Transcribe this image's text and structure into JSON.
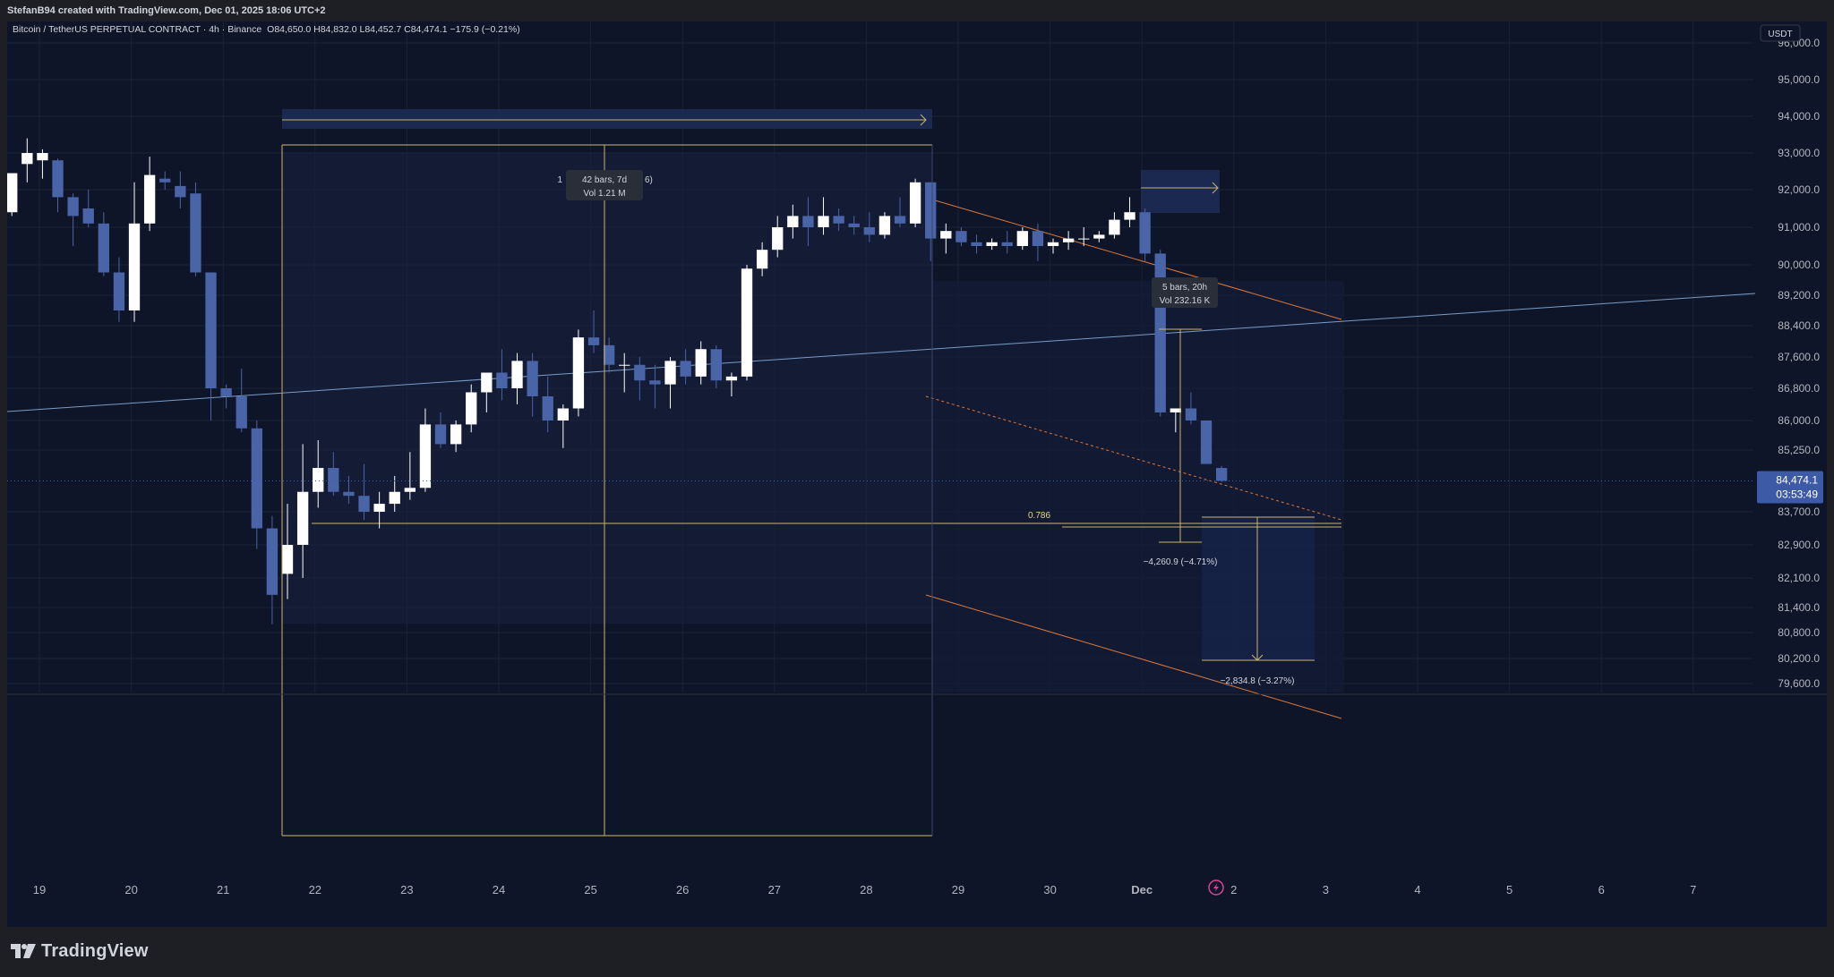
{
  "header": {
    "created_text": "StefanB94 created with TradingView.com, Dec 01, 2025 18:06 UTC+2"
  },
  "legend": {
    "symbol": "Bitcoin / TetherUS PERPETUAL CONTRACT · 4h · Binance",
    "ohlc": "O84,650.0  H84,832.0  L84,452.7  C84,474.1  −175.9 (−0.21%)"
  },
  "price_scale": {
    "currency": "USDT",
    "ticks": [
      "96,000.0",
      "95,000.0",
      "94,000.0",
      "93,000.0",
      "92,000.0",
      "91,000.0",
      "90,000.0",
      "89,200.0",
      "88,400.0",
      "87,600.0",
      "86,800.0",
      "86,000.0",
      "85,250.0",
      "83,700.0",
      "82,900.0",
      "82,100.0",
      "81,400.0",
      "80,800.0",
      "80,200.0",
      "79,600.0"
    ],
    "last_price": "84,474.1",
    "countdown": "03:53:49"
  },
  "time_axis": {
    "labels": [
      "19",
      "20",
      "21",
      "22",
      "23",
      "24",
      "25",
      "26",
      "27",
      "28",
      "29",
      "30",
      "Dec",
      "2",
      "3",
      "4",
      "5",
      "6",
      "7"
    ]
  },
  "annotations": {
    "range1_line1": "42 bars, 7d",
    "range1_line2": "Vol 1.21 M",
    "range1_hidden_prefix": "1",
    "range1_hidden_suffix": "6)",
    "range2_line1": "5 bars, 20h",
    "range2_line2": "Vol 232.16 K",
    "fib_label": "0.786",
    "measure1": "−4,260.9 (−4.71%)",
    "measure2": "−2,834.8 (−3.27%)"
  },
  "branding": {
    "logo_text": "TradingView"
  },
  "colors": {
    "bg": "#0f1528",
    "up": "#ffffff",
    "down": "#4a64a8",
    "axis_text": "#b2b5be",
    "trend_orange": "#d9783a",
    "trend_blue": "#7a9cc6",
    "fib_yellow": "#c9b56a",
    "last_price_bg": "#3d5aa6"
  },
  "chart_data": {
    "type": "candlestick",
    "title": "Bitcoin / TetherUS PERPETUAL CONTRACT · 4h · Binance",
    "x_axis": "date (4h bars, Nov 18 – Dec 7, 2025)",
    "ylim": [
      79300,
      96600
    ],
    "grid": true,
    "candles": [
      {
        "o": 91400,
        "h": 92450,
        "l": 91300,
        "c": 92450
      },
      {
        "o": 92700,
        "h": 93400,
        "l": 92200,
        "c": 93000
      },
      {
        "o": 92800,
        "h": 93100,
        "l": 92300,
        "c": 93000
      },
      {
        "o": 92800,
        "h": 92850,
        "l": 91400,
        "c": 91800
      },
      {
        "o": 91800,
        "h": 91900,
        "l": 90500,
        "c": 91300
      },
      {
        "o": 91500,
        "h": 92000,
        "l": 91000,
        "c": 91100
      },
      {
        "o": 91100,
        "h": 91400,
        "l": 89700,
        "c": 89800
      },
      {
        "o": 89800,
        "h": 90200,
        "l": 88500,
        "c": 88800
      },
      {
        "o": 88800,
        "h": 92200,
        "l": 88500,
        "c": 91100
      },
      {
        "o": 91100,
        "h": 92900,
        "l": 90900,
        "c": 92400
      },
      {
        "o": 92300,
        "h": 92500,
        "l": 92000,
        "c": 92200
      },
      {
        "o": 92100,
        "h": 92500,
        "l": 91500,
        "c": 91800
      },
      {
        "o": 91900,
        "h": 92200,
        "l": 89700,
        "c": 89800
      },
      {
        "o": 89800,
        "h": 89800,
        "l": 86000,
        "c": 86800
      },
      {
        "o": 86800,
        "h": 86900,
        "l": 86300,
        "c": 86600
      },
      {
        "o": 86600,
        "h": 87300,
        "l": 85700,
        "c": 85800
      },
      {
        "o": 85800,
        "h": 86000,
        "l": 82800,
        "c": 83300
      },
      {
        "o": 83300,
        "h": 83600,
        "l": 81000,
        "c": 81700
      },
      {
        "o": 82200,
        "h": 83900,
        "l": 81600,
        "c": 82900
      },
      {
        "o": 82900,
        "h": 85400,
        "l": 82100,
        "c": 84200
      },
      {
        "o": 84200,
        "h": 85500,
        "l": 83800,
        "c": 84800
      },
      {
        "o": 84800,
        "h": 85200,
        "l": 84100,
        "c": 84200
      },
      {
        "o": 84200,
        "h": 84600,
        "l": 83900,
        "c": 84100
      },
      {
        "o": 84100,
        "h": 84900,
        "l": 83500,
        "c": 83700
      },
      {
        "o": 83700,
        "h": 84200,
        "l": 83300,
        "c": 83900
      },
      {
        "o": 83900,
        "h": 84600,
        "l": 83700,
        "c": 84200
      },
      {
        "o": 84200,
        "h": 85200,
        "l": 84000,
        "c": 84300
      },
      {
        "o": 84300,
        "h": 86300,
        "l": 84200,
        "c": 85900
      },
      {
        "o": 85900,
        "h": 86200,
        "l": 85300,
        "c": 85400
      },
      {
        "o": 85400,
        "h": 86000,
        "l": 85200,
        "c": 85900
      },
      {
        "o": 85900,
        "h": 86900,
        "l": 85700,
        "c": 86700
      },
      {
        "o": 86700,
        "h": 87200,
        "l": 86200,
        "c": 87200
      },
      {
        "o": 87200,
        "h": 87800,
        "l": 86500,
        "c": 86800
      },
      {
        "o": 86800,
        "h": 87700,
        "l": 86400,
        "c": 87500
      },
      {
        "o": 87500,
        "h": 87700,
        "l": 86100,
        "c": 86600
      },
      {
        "o": 86600,
        "h": 87100,
        "l": 85700,
        "c": 86000
      },
      {
        "o": 86000,
        "h": 86400,
        "l": 85300,
        "c": 86300
      },
      {
        "o": 86300,
        "h": 88300,
        "l": 86100,
        "c": 88100
      },
      {
        "o": 88100,
        "h": 88800,
        "l": 87700,
        "c": 87900
      },
      {
        "o": 87900,
        "h": 88100,
        "l": 87200,
        "c": 87400
      },
      {
        "o": 87400,
        "h": 87700,
        "l": 86700,
        "c": 87400
      },
      {
        "o": 87400,
        "h": 87600,
        "l": 86500,
        "c": 87000
      },
      {
        "o": 87000,
        "h": 87400,
        "l": 86300,
        "c": 86900
      },
      {
        "o": 86900,
        "h": 87600,
        "l": 86300,
        "c": 87500
      },
      {
        "o": 87500,
        "h": 87800,
        "l": 86900,
        "c": 87100
      },
      {
        "o": 87100,
        "h": 88000,
        "l": 86900,
        "c": 87800
      },
      {
        "o": 87800,
        "h": 87900,
        "l": 86800,
        "c": 87000
      },
      {
        "o": 87000,
        "h": 87200,
        "l": 86600,
        "c": 87100
      },
      {
        "o": 87100,
        "h": 90000,
        "l": 87000,
        "c": 89900
      },
      {
        "o": 89900,
        "h": 90600,
        "l": 89700,
        "c": 90400
      },
      {
        "o": 90400,
        "h": 91300,
        "l": 90200,
        "c": 91000
      },
      {
        "o": 91000,
        "h": 91600,
        "l": 90700,
        "c": 91300
      },
      {
        "o": 91300,
        "h": 91800,
        "l": 90500,
        "c": 91000
      },
      {
        "o": 91000,
        "h": 91800,
        "l": 90800,
        "c": 91300
      },
      {
        "o": 91300,
        "h": 91500,
        "l": 90900,
        "c": 91100
      },
      {
        "o": 91100,
        "h": 91300,
        "l": 90800,
        "c": 91000
      },
      {
        "o": 91000,
        "h": 91400,
        "l": 90600,
        "c": 90800
      },
      {
        "o": 90800,
        "h": 91400,
        "l": 90700,
        "c": 91300
      },
      {
        "o": 91300,
        "h": 91800,
        "l": 91000,
        "c": 91100
      },
      {
        "o": 91100,
        "h": 92300,
        "l": 91000,
        "c": 92200
      },
      {
        "o": 92200,
        "h": 92200,
        "l": 90100,
        "c": 90700
      },
      {
        "o": 90700,
        "h": 91100,
        "l": 90300,
        "c": 90900
      },
      {
        "o": 90900,
        "h": 91000,
        "l": 90500,
        "c": 90600
      },
      {
        "o": 90600,
        "h": 90800,
        "l": 90300,
        "c": 90500
      },
      {
        "o": 90500,
        "h": 90700,
        "l": 90400,
        "c": 90600
      },
      {
        "o": 90600,
        "h": 90900,
        "l": 90300,
        "c": 90500
      },
      {
        "o": 90500,
        "h": 91000,
        "l": 90400,
        "c": 90900
      },
      {
        "o": 90900,
        "h": 91100,
        "l": 90100,
        "c": 90500
      },
      {
        "o": 90500,
        "h": 90700,
        "l": 90300,
        "c": 90600
      },
      {
        "o": 90600,
        "h": 90900,
        "l": 90400,
        "c": 90700
      },
      {
        "o": 90700,
        "h": 91000,
        "l": 90500,
        "c": 90700
      },
      {
        "o": 90700,
        "h": 90900,
        "l": 90600,
        "c": 90800
      },
      {
        "o": 90800,
        "h": 91400,
        "l": 90700,
        "c": 91200
      },
      {
        "o": 91200,
        "h": 91800,
        "l": 91000,
        "c": 91400
      },
      {
        "o": 91400,
        "h": 91500,
        "l": 90100,
        "c": 90300
      },
      {
        "o": 90300,
        "h": 90400,
        "l": 86100,
        "c": 86200
      },
      {
        "o": 86200,
        "h": 86300,
        "l": 85700,
        "c": 86300
      },
      {
        "o": 86300,
        "h": 86700,
        "l": 85900,
        "c": 86000
      },
      {
        "o": 86000,
        "h": 86000,
        "l": 84900,
        "c": 84900
      },
      {
        "o": 84800,
        "h": 84850,
        "l": 84450,
        "c": 84474
      }
    ],
    "levels": [
      {
        "name": "0.786",
        "value": 83420
      }
    ]
  }
}
